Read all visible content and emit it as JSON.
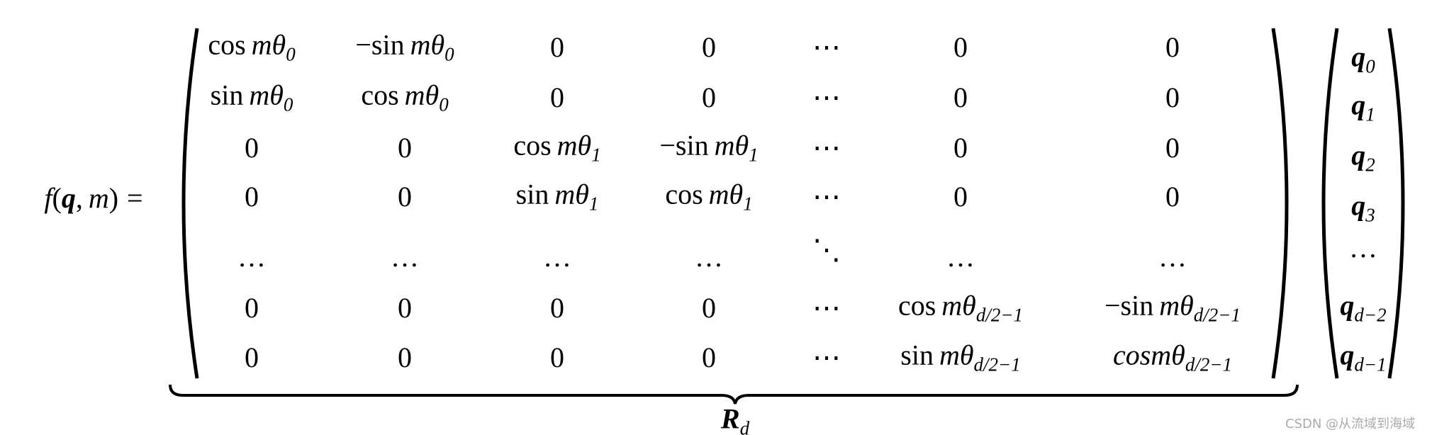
{
  "formula": {
    "lhs": {
      "f": "f",
      "lp": "(",
      "q": "q",
      "comma": ",",
      "m": "m",
      "rp": ")",
      "eq": "="
    },
    "matrix": {
      "rows": [
        [
          {
            "op": "cos",
            "var": "mθ",
            "sub": "0"
          },
          {
            "op": "−sin",
            "var": "mθ",
            "sub": "0"
          },
          {
            "text": "0"
          },
          {
            "text": "0"
          },
          {
            "text": "⋯"
          },
          {
            "text": "0"
          },
          {
            "text": "0"
          }
        ],
        [
          {
            "op": "sin",
            "var": "mθ",
            "sub": "0"
          },
          {
            "op": "cos",
            "var": "mθ",
            "sub": "0"
          },
          {
            "text": "0"
          },
          {
            "text": "0"
          },
          {
            "text": "⋯"
          },
          {
            "text": "0"
          },
          {
            "text": "0"
          }
        ],
        [
          {
            "text": "0"
          },
          {
            "text": "0"
          },
          {
            "op": "cos",
            "var": "mθ",
            "sub": "1"
          },
          {
            "op": "−sin",
            "var": "mθ",
            "sub": "1"
          },
          {
            "text": "⋯"
          },
          {
            "text": "0"
          },
          {
            "text": "0"
          }
        ],
        [
          {
            "text": "0"
          },
          {
            "text": "0"
          },
          {
            "op": "sin",
            "var": "mθ",
            "sub": "1"
          },
          {
            "op": "cos",
            "var": "mθ",
            "sub": "1"
          },
          {
            "text": "⋯"
          },
          {
            "text": "0"
          },
          {
            "text": "0"
          }
        ],
        [
          {
            "text": "…"
          },
          {
            "text": "…"
          },
          {
            "text": "…"
          },
          {
            "text": "…"
          },
          {
            "text": "⋱"
          },
          {
            "text": "…"
          },
          {
            "text": "…"
          }
        ],
        [
          {
            "text": "0"
          },
          {
            "text": "0"
          },
          {
            "text": "0"
          },
          {
            "text": "0"
          },
          {
            "text": "⋯"
          },
          {
            "op": "cos",
            "var": "mθ",
            "sub": "d/2−1"
          },
          {
            "op": "−sin",
            "var": "mθ",
            "sub": "d/2−1"
          }
        ],
        [
          {
            "text": "0"
          },
          {
            "text": "0"
          },
          {
            "text": "0"
          },
          {
            "text": "0"
          },
          {
            "text": "⋯"
          },
          {
            "op": "sin",
            "var": "mθ",
            "sub": "d/2−1"
          },
          {
            "var": "cosmθ",
            "sub": "d/2−1"
          }
        ]
      ]
    },
    "vector": [
      {
        "var": "q",
        "sub": "0"
      },
      {
        "var": "q",
        "sub": "1"
      },
      {
        "var": "q",
        "sub": "2"
      },
      {
        "var": "q",
        "sub": "3"
      },
      {
        "text": "…"
      },
      {
        "var": "q",
        "sub": "d−2"
      },
      {
        "var": "q",
        "sub": "d−1"
      }
    ],
    "underbrace_label": {
      "var": "R",
      "sub": "d"
    }
  },
  "watermark": "CSDN @从流域到海域"
}
